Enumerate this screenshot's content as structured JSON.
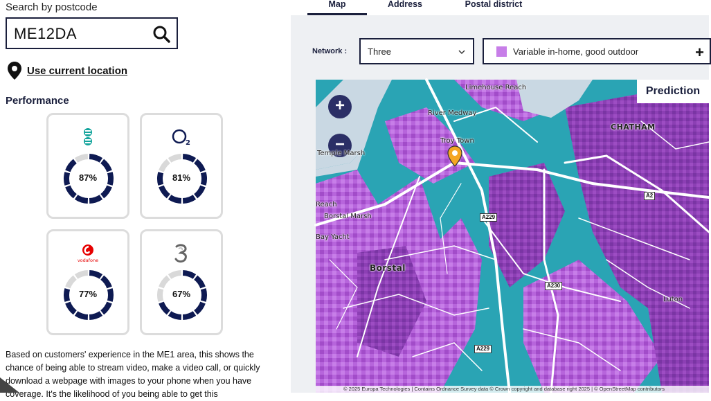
{
  "search": {
    "label": "Search by postcode",
    "value": "ME12DA"
  },
  "location_link": "Use current location",
  "performance": {
    "title": "Performance",
    "operators": [
      {
        "name": "EE",
        "logo_text": "",
        "percent_label": "87%",
        "value": 0.87,
        "color": "#0e1a52"
      },
      {
        "name": "O2",
        "logo_text": "O",
        "percent_label": "81%",
        "value": 0.81,
        "color": "#0e1a52"
      },
      {
        "name": "Vodafone",
        "logo_text": "vodafone",
        "percent_label": "77%",
        "value": 0.77,
        "color": "#0e1a52"
      },
      {
        "name": "Three",
        "logo_text": "3",
        "percent_label": "67%",
        "value": 0.67,
        "color": "#0e1a52"
      }
    ]
  },
  "description": "Based on customers' experience in the ME1 area, this shows the chance of being able to stream video, make a video call, or quickly download a webpage with images to your phone when you have coverage. It's the likelihood of you being able to get this",
  "tabs": [
    "Map",
    "Address",
    "Postal district"
  ],
  "network": {
    "label": "Network :",
    "selected": "Three"
  },
  "legend": {
    "label": "Variable in-home, good outdoor",
    "color": "#c77ee8"
  },
  "map": {
    "prediction_label": "Prediction",
    "zoom_in": "+",
    "zoom_out": "−",
    "labels": {
      "limehouse": "Limehouse Reach",
      "river": "River Medway",
      "chatham": "CHATHAM",
      "borstal": "Borstal",
      "borstal_marsh": "Borstal Marsh",
      "reach": "Reach",
      "temple": "Temple Marsh",
      "troy": "Troy Town",
      "luton": "Luton",
      "yacht": "Bay Yacht",
      "a229a": "A229",
      "a229b": "A229",
      "a230": "A230",
      "a2": "A2"
    },
    "attribution": "© 2025 Europa Technologies | Contains Ordnance Survey data © Crown copyright and database right 2025 | © OpenStreetMap contributors"
  }
}
